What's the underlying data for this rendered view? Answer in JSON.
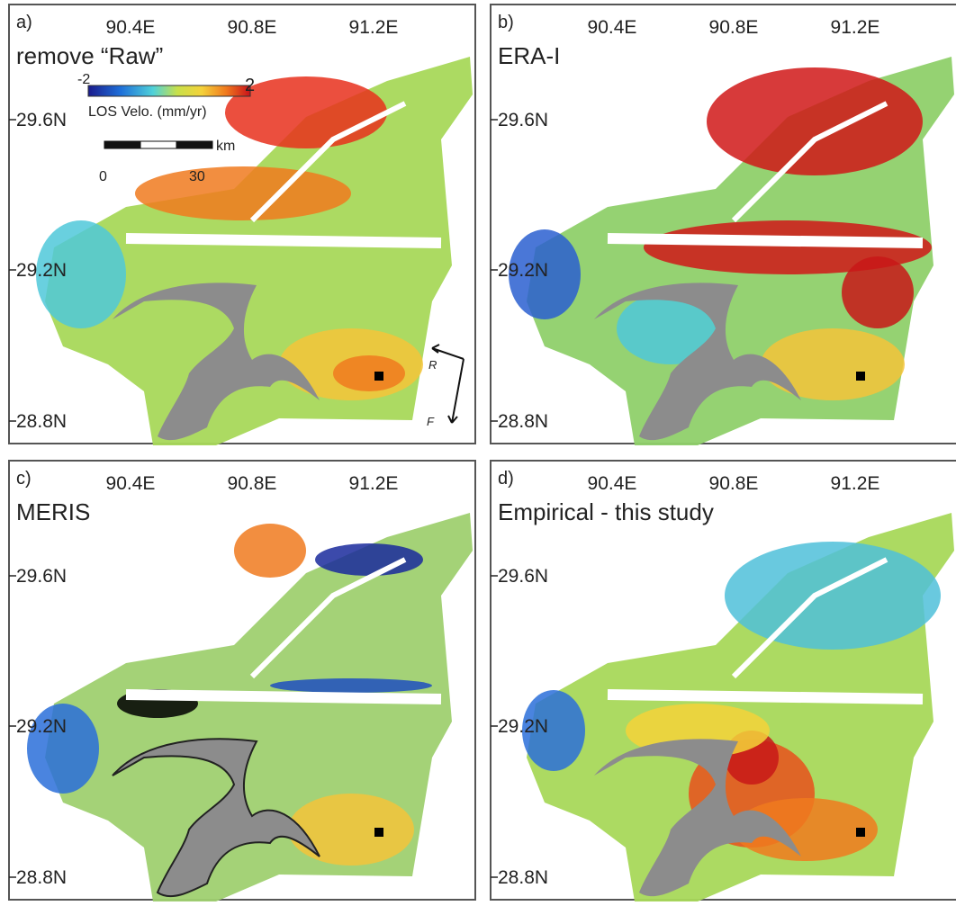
{
  "panels": [
    {
      "label": "a)",
      "title": "remove “Raw”",
      "lon_labels": [
        "90.4E",
        "90.8E",
        "91.2E"
      ],
      "lat_labels": [
        "29.6N",
        "29.2N",
        "28.8N"
      ]
    },
    {
      "label": "b)",
      "title": "ERA-I",
      "lon_labels": [
        "90.4E",
        "90.8E",
        "91.2E"
      ],
      "lat_labels": [
        "29.6N",
        "29.2N",
        "28.8N"
      ]
    },
    {
      "label": "c)",
      "title": "MERIS",
      "lon_labels": [
        "90.4E",
        "90.8E",
        "91.2E"
      ],
      "lat_labels": [
        "29.6N",
        "29.2N",
        "28.8N"
      ]
    },
    {
      "label": "d)",
      "title": "Empirical - this study",
      "lon_labels": [
        "90.4E",
        "90.8E",
        "91.2E"
      ],
      "lat_labels": [
        "29.6N",
        "29.2N",
        "28.8N"
      ]
    }
  ],
  "colorbar": {
    "min": "-2",
    "max": "2",
    "label": "LOS Velo. (mm/yr)"
  },
  "scale_bar": {
    "start": "0",
    "end": "30",
    "unit": "km"
  },
  "direction": {
    "azimuth": "R",
    "flight": "F"
  }
}
